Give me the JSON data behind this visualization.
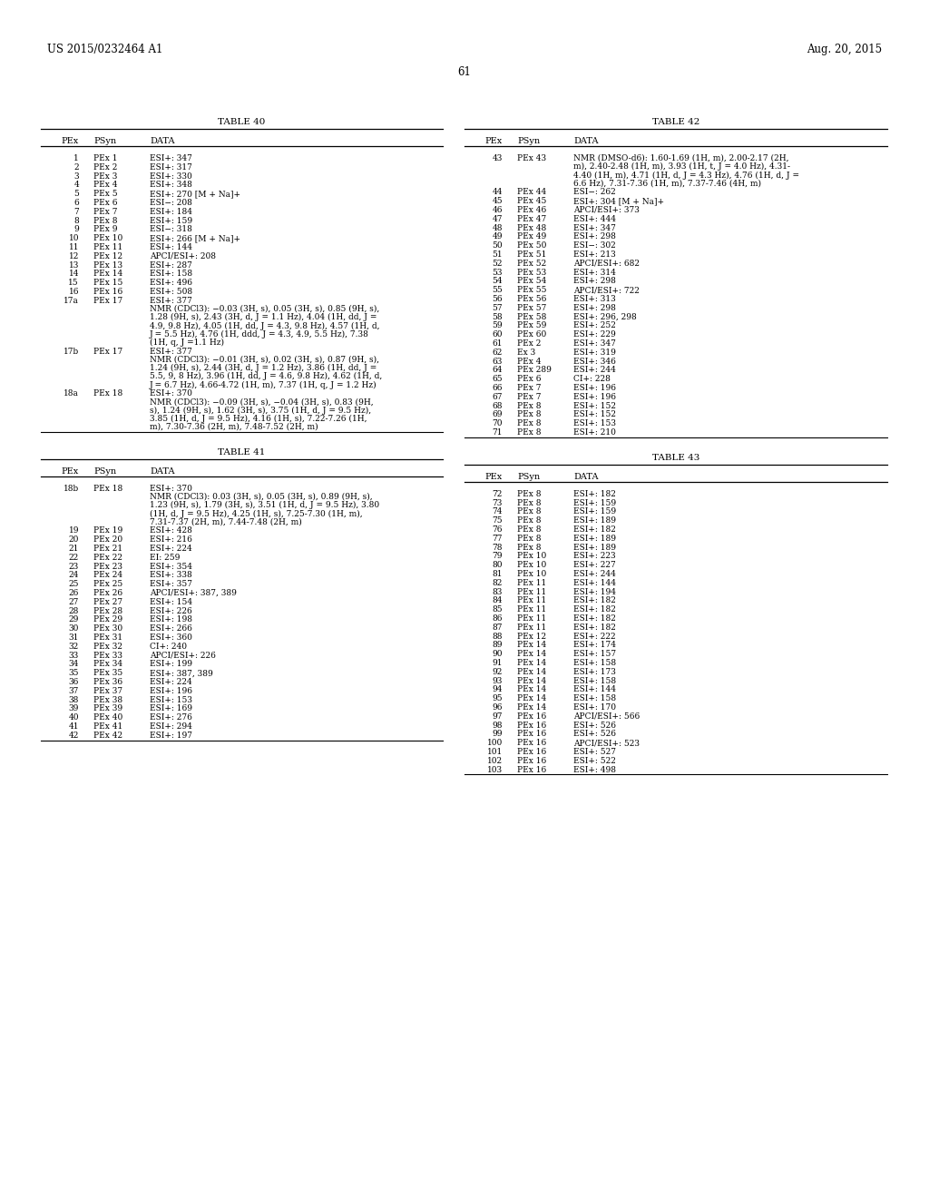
{
  "page_header_left": "US 2015/0232464 A1",
  "page_header_right": "Aug. 20, 2015",
  "page_number": "61",
  "background_color": "#ffffff",
  "text_color": "#000000",
  "table40": {
    "title": "TABLE 40",
    "rows": [
      [
        "1",
        "PEx 1",
        "ESI+: 347"
      ],
      [
        "2",
        "PEx 2",
        "ESI+: 317"
      ],
      [
        "3",
        "PEx 3",
        "ESI+: 330"
      ],
      [
        "4",
        "PEx 4",
        "ESI+: 348"
      ],
      [
        "5",
        "PEx 5",
        "ESI+: 270 [M + Na]+"
      ],
      [
        "6",
        "PEx 6",
        "ESI−: 208"
      ],
      [
        "7",
        "PEx 7",
        "ESI+: 184"
      ],
      [
        "8",
        "PEx 8",
        "ESI+: 159"
      ],
      [
        "9",
        "PEx 9",
        "ESI−: 318"
      ],
      [
        "10",
        "PEx 10",
        "ESI+: 266 [M + Na]+"
      ],
      [
        "11",
        "PEx 11",
        "ESI+: 144"
      ],
      [
        "12",
        "PEx 12",
        "APCI/ESI+: 208"
      ],
      [
        "13",
        "PEx 13",
        "ESI+: 287"
      ],
      [
        "14",
        "PEx 14",
        "ESI+: 158"
      ],
      [
        "15",
        "PEx 15",
        "ESI+: 496"
      ],
      [
        "16",
        "PEx 16",
        "ESI+: 508"
      ],
      [
        "17a",
        "PEx 17",
        "ESI+: 377\nNMR (CDCl3): −0.03 (3H, s), 0.05 (3H, s), 0.85 (9H, s),\n1.28 (9H, s), 2.43 (3H, d, J = 1.1 Hz), 4.04 (1H, dd, J =\n4.9, 9.8 Hz), 4.05 (1H, dd, J = 4.3, 9.8 Hz), 4.57 (1H, d,\nJ = 5.5 Hz), 4.76 (1H, ddd, J = 4.3, 4.9, 5.5 Hz), 7.38\n(1H, q, J =1.1 Hz)"
      ],
      [
        "17b",
        "PEx 17",
        "ESI+: 377\nNMR (CDCl3): −0.01 (3H, s), 0.02 (3H, s), 0.87 (9H, s),\n1.24 (9H, s), 2.44 (3H, d, J = 1.2 Hz), 3.86 (1H, dd, J =\n5.5, 9, 8 Hz), 3.96 (1H, dd, J = 4.6, 9.8 Hz), 4.62 (1H, d,\nJ = 6.7 Hz), 4.66-4.72 (1H, m), 7.37 (1H, q, J = 1.2 Hz)"
      ],
      [
        "18a",
        "PEx 18",
        "ESI+: 370\nNMR (CDCl3): −0.09 (3H, s), −0.04 (3H, s), 0.83 (9H,\ns), 1.24 (9H, s), 1.62 (3H, s), 3.75 (1H, d, J = 9.5 Hz),\n3.85 (1H, d, J = 9.5 Hz), 4.16 (1H, s), 7.22-7.26 (1H,\nm), 7.30-7.36 (2H, m), 7.48-7.52 (2H, m)"
      ]
    ]
  },
  "table41": {
    "title": "TABLE 41",
    "rows": [
      [
        "18b",
        "PEx 18",
        "ESI+: 370\nNMR (CDCl3): 0.03 (3H, s), 0.05 (3H, s), 0.89 (9H, s),\n1.23 (9H, s), 1.79 (3H, s), 3.51 (1H, d, J = 9.5 Hz), 3.80\n(1H, d, J = 9.5 Hz), 4.25 (1H, s), 7.25-7.30 (1H, m),\n7.31-7.37 (2H, m), 7.44-7.48 (2H, m)"
      ],
      [
        "19",
        "PEx 19",
        "ESI+: 428"
      ],
      [
        "20",
        "PEx 20",
        "ESI+: 216"
      ],
      [
        "21",
        "PEx 21",
        "ESI+: 224"
      ],
      [
        "22",
        "PEx 22",
        "EI: 259"
      ],
      [
        "23",
        "PEx 23",
        "ESI+: 354"
      ],
      [
        "24",
        "PEx 24",
        "ESI+: 338"
      ],
      [
        "25",
        "PEx 25",
        "ESI+: 357"
      ],
      [
        "26",
        "PEx 26",
        "APCI/ESI+: 387, 389"
      ],
      [
        "27",
        "PEx 27",
        "ESI+: 154"
      ],
      [
        "28",
        "PEx 28",
        "ESI+: 226"
      ],
      [
        "29",
        "PEx 29",
        "ESI+: 198"
      ],
      [
        "30",
        "PEx 30",
        "ESI+: 266"
      ],
      [
        "31",
        "PEx 31",
        "ESI+: 360"
      ],
      [
        "32",
        "PEx 32",
        "CI+: 240"
      ],
      [
        "33",
        "PEx 33",
        "APCI/ESI+: 226"
      ],
      [
        "34",
        "PEx 34",
        "ESI+: 199"
      ],
      [
        "35",
        "PEx 35",
        "ESI+: 387, 389"
      ],
      [
        "36",
        "PEx 36",
        "ESI+: 224"
      ],
      [
        "37",
        "PEx 37",
        "ESI+: 196"
      ],
      [
        "38",
        "PEx 38",
        "ESI+: 153"
      ],
      [
        "39",
        "PEx 39",
        "ESI+: 169"
      ],
      [
        "40",
        "PEx 40",
        "ESI+: 276"
      ],
      [
        "41",
        "PEx 41",
        "ESI+: 294"
      ],
      [
        "42",
        "PEx 42",
        "ESI+: 197"
      ]
    ]
  },
  "table42": {
    "title": "TABLE 42",
    "rows": [
      [
        "43",
        "PEx 43",
        "NMR (DMSO-d6): 1.60-1.69 (1H, m), 2.00-2.17 (2H,\nm), 2.40-2.48 (1H, m), 3.93 (1H, t, J = 4.0 Hz), 4.31-\n4.40 (1H, m), 4.71 (1H, d, J = 4.3 Hz), 4.76 (1H, d, J =\n6.6 Hz), 7.31-7.36 (1H, m), 7.37-7.46 (4H, m)"
      ],
      [
        "44",
        "PEx 44",
        "ESI−: 262"
      ],
      [
        "45",
        "PEx 45",
        "ESI+: 304 [M + Na]+"
      ],
      [
        "46",
        "PEx 46",
        "APCI/ESI+: 373"
      ],
      [
        "47",
        "PEx 47",
        "ESI+: 444"
      ],
      [
        "48",
        "PEx 48",
        "ESI+: 347"
      ],
      [
        "49",
        "PEx 49",
        "ESI+: 298"
      ],
      [
        "50",
        "PEx 50",
        "ESI−: 302"
      ],
      [
        "51",
        "PEx 51",
        "ESI+: 213"
      ],
      [
        "52",
        "PEx 52",
        "APCI/ESI+: 682"
      ],
      [
        "53",
        "PEx 53",
        "ESI+: 314"
      ],
      [
        "54",
        "PEx 54",
        "ESI+: 298"
      ],
      [
        "55",
        "PEx 55",
        "APCI/ESI+: 722"
      ],
      [
        "56",
        "PEx 56",
        "ESI+: 313"
      ],
      [
        "57",
        "PEx 57",
        "ESI+: 298"
      ],
      [
        "58",
        "PEx 58",
        "ESI+: 296, 298"
      ],
      [
        "59",
        "PEx 59",
        "ESI+: 252"
      ],
      [
        "60",
        "PEx 60",
        "ESI+: 229"
      ],
      [
        "61",
        "PEx 2",
        "ESI+: 347"
      ],
      [
        "62",
        "Ex 3",
        "ESI+: 319"
      ],
      [
        "63",
        "PEx 4",
        "ESI+: 346"
      ],
      [
        "64",
        "PEx 289",
        "ESI+: 244"
      ],
      [
        "65",
        "PEx 6",
        "CI+: 228"
      ],
      [
        "66",
        "PEx 7",
        "ESI+: 196"
      ],
      [
        "67",
        "PEx 7",
        "ESI+: 196"
      ],
      [
        "68",
        "PEx 8",
        "ESI+: 152"
      ],
      [
        "69",
        "PEx 8",
        "ESI+: 152"
      ],
      [
        "70",
        "PEx 8",
        "ESI+: 153"
      ],
      [
        "71",
        "PEx 8",
        "ESI+: 210"
      ]
    ]
  },
  "table43": {
    "title": "TABLE 43",
    "rows": [
      [
        "72",
        "PEx 8",
        "ESI+: 182"
      ],
      [
        "73",
        "PEx 8",
        "ESI+: 159"
      ],
      [
        "74",
        "PEx 8",
        "ESI+: 159"
      ],
      [
        "75",
        "PEx 8",
        "ESI+: 189"
      ],
      [
        "76",
        "PEx 8",
        "ESI+: 182"
      ],
      [
        "77",
        "PEx 8",
        "ESI+: 189"
      ],
      [
        "78",
        "PEx 8",
        "ESI+: 189"
      ],
      [
        "79",
        "PEx 10",
        "ESI+: 223"
      ],
      [
        "80",
        "PEx 10",
        "ESI+: 227"
      ],
      [
        "81",
        "PEx 10",
        "ESI+: 244"
      ],
      [
        "82",
        "PEx 11",
        "ESI+: 144"
      ],
      [
        "83",
        "PEx 11",
        "ESI+: 194"
      ],
      [
        "84",
        "PEx 11",
        "ESI+: 182"
      ],
      [
        "85",
        "PEx 11",
        "ESI+: 182"
      ],
      [
        "86",
        "PEx 11",
        "ESI+: 182"
      ],
      [
        "87",
        "PEx 11",
        "ESI+: 182"
      ],
      [
        "88",
        "PEx 12",
        "ESI+: 222"
      ],
      [
        "89",
        "PEx 14",
        "ESI+: 174"
      ],
      [
        "90",
        "PEx 14",
        "ESI+: 157"
      ],
      [
        "91",
        "PEx 14",
        "ESI+: 158"
      ],
      [
        "92",
        "PEx 14",
        "ESI+: 173"
      ],
      [
        "93",
        "PEx 14",
        "ESI+: 158"
      ],
      [
        "94",
        "PEx 14",
        "ESI+: 144"
      ],
      [
        "95",
        "PEx 14",
        "ESI+: 158"
      ],
      [
        "96",
        "PEx 14",
        "ESI+: 170"
      ],
      [
        "97",
        "PEx 16",
        "APCI/ESI+: 566"
      ],
      [
        "98",
        "PEx 16",
        "ESI+: 526"
      ],
      [
        "99",
        "PEx 16",
        "ESI+: 526"
      ],
      [
        "100",
        "PEx 16",
        "APCI/ESI+: 523"
      ],
      [
        "101",
        "PEx 16",
        "ESI+: 527"
      ],
      [
        "102",
        "PEx 16",
        "ESI+: 522"
      ],
      [
        "103",
        "PEx 16",
        "ESI+: 498"
      ]
    ]
  }
}
